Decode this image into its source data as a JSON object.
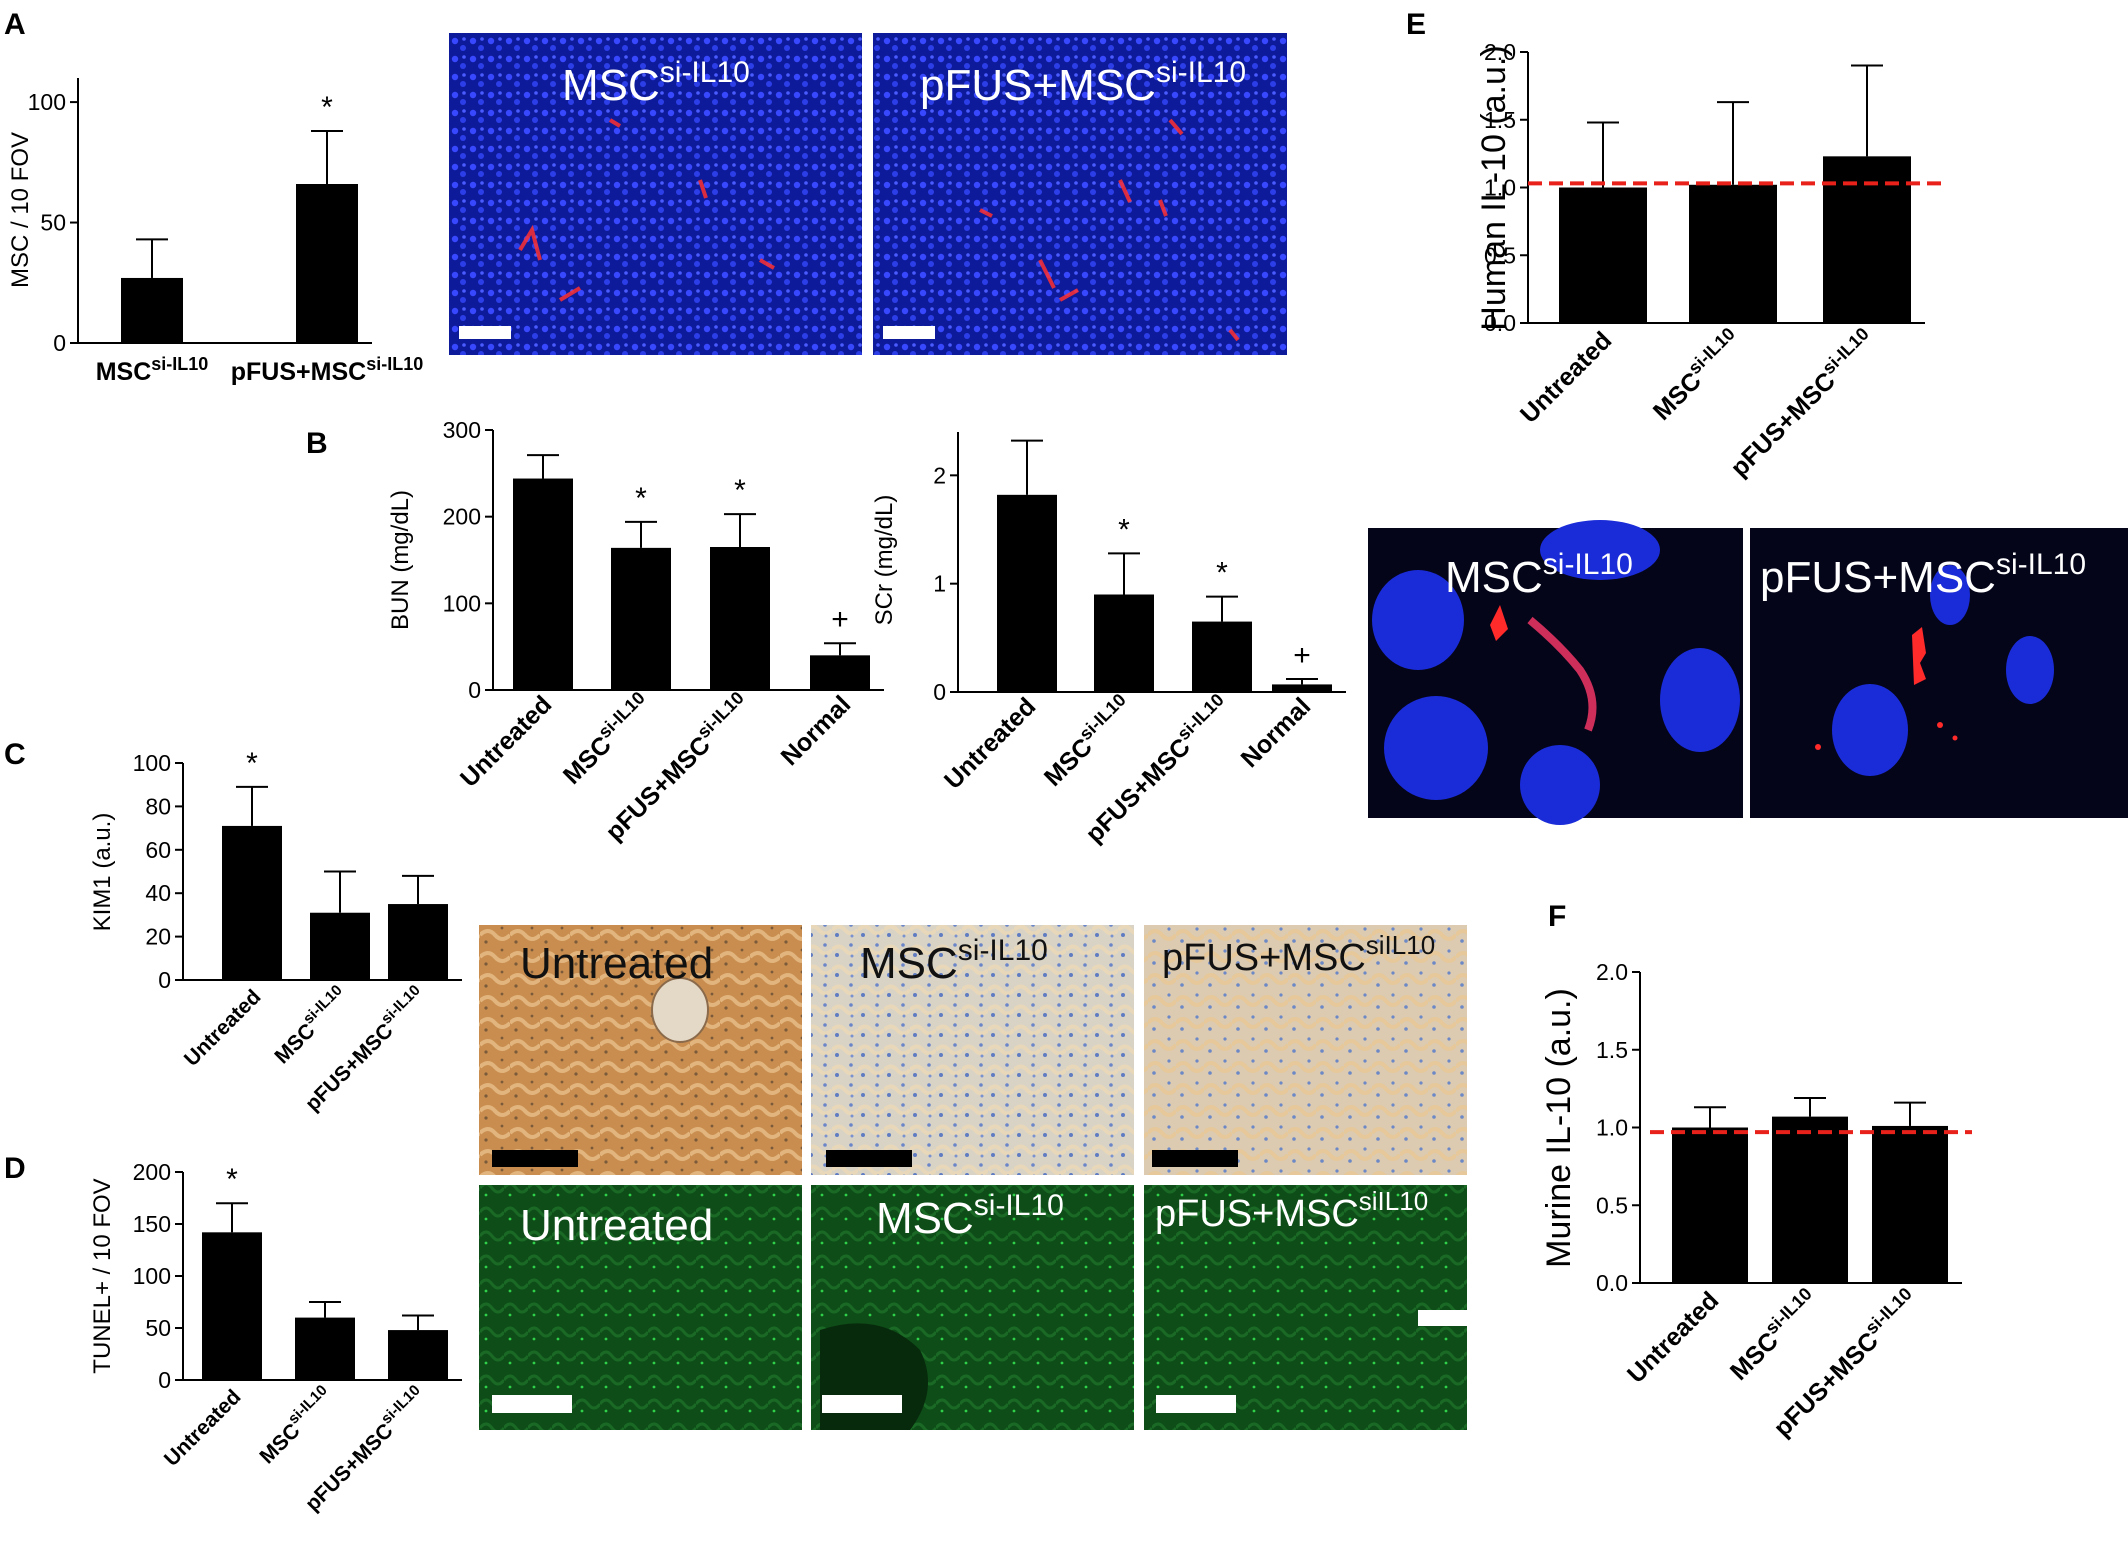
{
  "panels": {
    "A": "A",
    "B": "B",
    "C": "C",
    "D": "D",
    "E": "E",
    "F": "F"
  },
  "chart_data": [
    {
      "id": "A",
      "type": "bar",
      "categories": [
        "MSC^si-IL10",
        "pFUS+MSC^si-IL10"
      ],
      "values": [
        27,
        66
      ],
      "errors": [
        16,
        22
      ],
      "significance": [
        "",
        "*"
      ],
      "ylabel": "MSC / 10 FOV",
      "ylim": [
        0,
        110
      ],
      "yticks": [
        0,
        50,
        100
      ]
    },
    {
      "id": "B1",
      "type": "bar",
      "categories": [
        "Untreated",
        "MSC^si-IL10",
        "pFUS+MSC^si-IL10",
        "Normal"
      ],
      "values": [
        244,
        164,
        165,
        40
      ],
      "errors": [
        27,
        30,
        38,
        14
      ],
      "significance": [
        "",
        "*",
        "*",
        "+"
      ],
      "ylabel": "BUN (mg/dL)",
      "ylim": [
        0,
        300
      ],
      "yticks": [
        0,
        100,
        200,
        300
      ]
    },
    {
      "id": "B2",
      "type": "bar",
      "categories": [
        "Untreated",
        "MSC^si-IL10",
        "pFUS+MSC^si-IL10",
        "Normal"
      ],
      "values": [
        1.82,
        0.9,
        0.65,
        0.07
      ],
      "errors": [
        0.5,
        0.38,
        0.23,
        0.05
      ],
      "significance": [
        "",
        "*",
        "*",
        "+"
      ],
      "ylabel": "SCr (mg/dL)",
      "ylim": [
        0,
        2.4
      ],
      "yticks": [
        0,
        1,
        2
      ]
    },
    {
      "id": "C",
      "type": "bar",
      "categories": [
        "Untreated",
        "MSC^si-IL10",
        "pFUS+MSC^si-IL10"
      ],
      "values": [
        71,
        31,
        35
      ],
      "errors": [
        18,
        19,
        13
      ],
      "significance": [
        "*",
        "",
        ""
      ],
      "ylabel": "KIM1 (a.u.)",
      "ylim": [
        0,
        100
      ],
      "yticks": [
        0,
        20,
        40,
        60,
        80,
        100
      ]
    },
    {
      "id": "D",
      "type": "bar",
      "categories": [
        "Untreated",
        "MSC^si-IL10",
        "pFUS+MSC^si-IL10"
      ],
      "values": [
        142,
        60,
        48
      ],
      "errors": [
        28,
        15,
        14
      ],
      "significance": [
        "*",
        "",
        ""
      ],
      "ylabel": "TUNEL+ / 10 FOV",
      "ylim": [
        0,
        200
      ],
      "yticks": [
        0,
        50,
        100,
        150,
        200
      ]
    },
    {
      "id": "E",
      "type": "bar",
      "categories": [
        "Untreated",
        "MSC^si-IL10",
        "pFUS+MSC^si-IL10"
      ],
      "values": [
        1.0,
        1.02,
        1.23
      ],
      "errors": [
        0.48,
        0.61,
        0.67
      ],
      "significance": [
        "",
        "",
        ""
      ],
      "reference_line": 1.03,
      "ylabel": "Human IL-10 (a.u.)",
      "ylim": [
        0,
        2.0
      ],
      "yticks": [
        "0.0",
        "0.5",
        "1.0",
        "1.5",
        "2.0"
      ]
    },
    {
      "id": "F",
      "type": "bar",
      "categories": [
        "Untreated",
        "MSC^si-IL10",
        "pFUS+MSC^si-IL10"
      ],
      "values": [
        1.0,
        1.07,
        1.01
      ],
      "errors": [
        0.13,
        0.12,
        0.15
      ],
      "significance": [
        "",
        "",
        ""
      ],
      "reference_line": 0.97,
      "ylabel": "Murine IL-10 (a.u.)",
      "ylim": [
        0,
        2.0
      ],
      "yticks": [
        "0.0",
        "0.5",
        "1.0",
        "1.5",
        "2.0"
      ]
    }
  ],
  "images": {
    "A1": {
      "base": "MSC",
      "sup": "si-IL10"
    },
    "A2": {
      "base": "pFUS+MSC",
      "sup": "si-IL10"
    },
    "E1": {
      "base": "MSC",
      "sup": "si-IL10"
    },
    "E2": {
      "base": "pFUS+MSC",
      "sup": "si-IL10"
    },
    "C1": {
      "base": "Untreated",
      "sup": ""
    },
    "C2": {
      "base": "MSC",
      "sup": "si-IL10"
    },
    "C3": {
      "base": "pFUS+MSC",
      "sup": "siIL10"
    },
    "D1": {
      "base": "Untreated",
      "sup": ""
    },
    "D2": {
      "base": "MSC",
      "sup": "si-IL10"
    },
    "D3": {
      "base": "pFUS+MSC",
      "sup": "siIL10"
    }
  },
  "colors": {
    "bar": "#000000",
    "reference_line": "#e8221b",
    "fluor_blue": "#1e2fd6",
    "fluor_red": "#ff2a2a",
    "ihc_brown": "#cf9a5c",
    "ihc_light": "#dcd6cc",
    "tunel_green": "#0f5a1c"
  }
}
